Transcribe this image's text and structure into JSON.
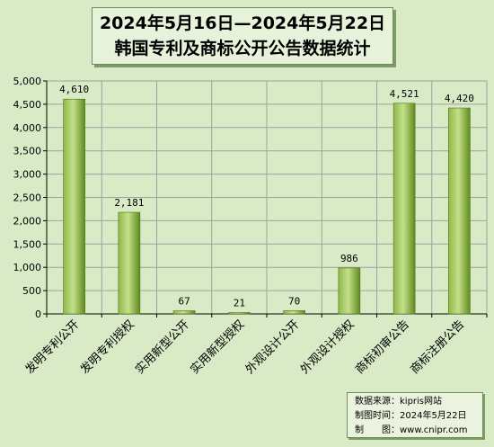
{
  "title": {
    "line1": "2024年5月16日—2024年5月22日",
    "line2": "韩国专利及商标公开公告数据统计"
  },
  "source": {
    "line1_label": "数据来源：",
    "line1_value": "kipris网站",
    "line2_label": "制图时间：",
    "line2_value": "2024年5月22日",
    "line3_label": "制　　图：",
    "line3_value": "www.cnipr.com"
  },
  "colors": {
    "bar_light": "#c4e08a",
    "bar_dark": "#5f8a1e",
    "plot_bg": "#d9ebc6",
    "grid": "#a0a0a0"
  },
  "chart_data": {
    "type": "bar",
    "categories": [
      "发明专利公开",
      "发明专利授权",
      "实用新型公开",
      "实用新型授权",
      "外观设计公开",
      "外观设计授权",
      "商标初审公告",
      "商标注册公告"
    ],
    "values": [
      4610,
      2181,
      67,
      21,
      70,
      986,
      4521,
      4420
    ],
    "value_labels": [
      "4,610",
      "2,181",
      "67",
      "21",
      "70",
      "986",
      "4,521",
      "4,420"
    ],
    "yticks": [
      0,
      500,
      1000,
      1500,
      2000,
      2500,
      3000,
      3500,
      4000,
      4500,
      5000
    ],
    "ytick_labels": [
      "0",
      "500",
      "1,000",
      "1,500",
      "2,000",
      "2,500",
      "3,000",
      "3,500",
      "4,000",
      "4,500",
      "5,000"
    ],
    "ylim": [
      0,
      5000
    ],
    "grid": true,
    "legend": false
  }
}
